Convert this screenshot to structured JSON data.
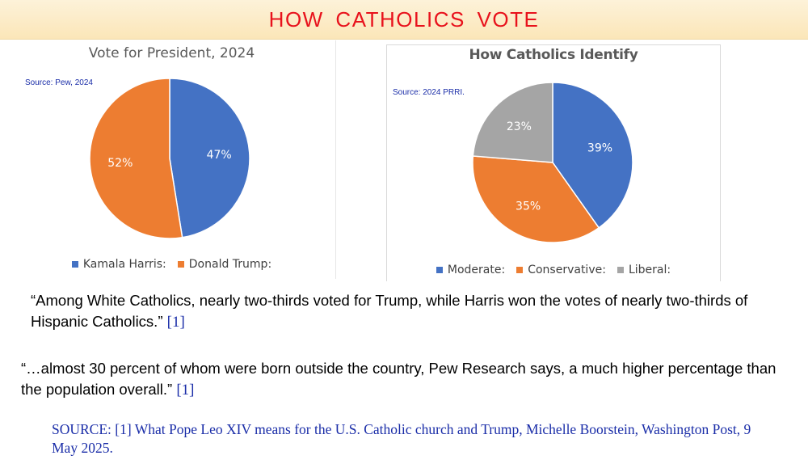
{
  "banner": {
    "title": "HOW  CATHOLICS  VOTE"
  },
  "chart_data": [
    {
      "type": "pie",
      "title": "Vote for President, 2024",
      "source": "Source: Pew, 2024",
      "categories": [
        "Kamala Harris:",
        "Donald Trump:"
      ],
      "values": [
        47,
        52
      ],
      "labels": [
        "47%",
        "52%"
      ],
      "colors": [
        "#4472c4",
        "#ed7d31"
      ],
      "legend_position": "bottom"
    },
    {
      "type": "pie",
      "title": "How Catholics Identify",
      "source": "Source: 2024 PRRI.",
      "categories": [
        "Moderate:",
        "Conservative:",
        "Liberal:"
      ],
      "values": [
        39,
        35,
        23
      ],
      "labels": [
        "39%",
        "35%",
        "23%"
      ],
      "colors": [
        "#4472c4",
        "#ed7d31",
        "#a5a5a5"
      ],
      "legend_position": "bottom"
    }
  ],
  "quotes": [
    {
      "text": "“Among White Catholics, nearly two-thirds voted for Trump, while Harris won the votes of nearly two-thirds of Hispanic Catholics.”",
      "ref": "[1]"
    },
    {
      "text": "“…almost 30 percent of whom were born outside the country, Pew Research says, a much higher percentage than the population overall.”",
      "ref": "[1]"
    }
  ],
  "source_note": "SOURCE:  [1] What Pope Leo XIV means for the U.S. Catholic church and Trump, Michelle Boorstein, Washington Post, 9 May 2025."
}
